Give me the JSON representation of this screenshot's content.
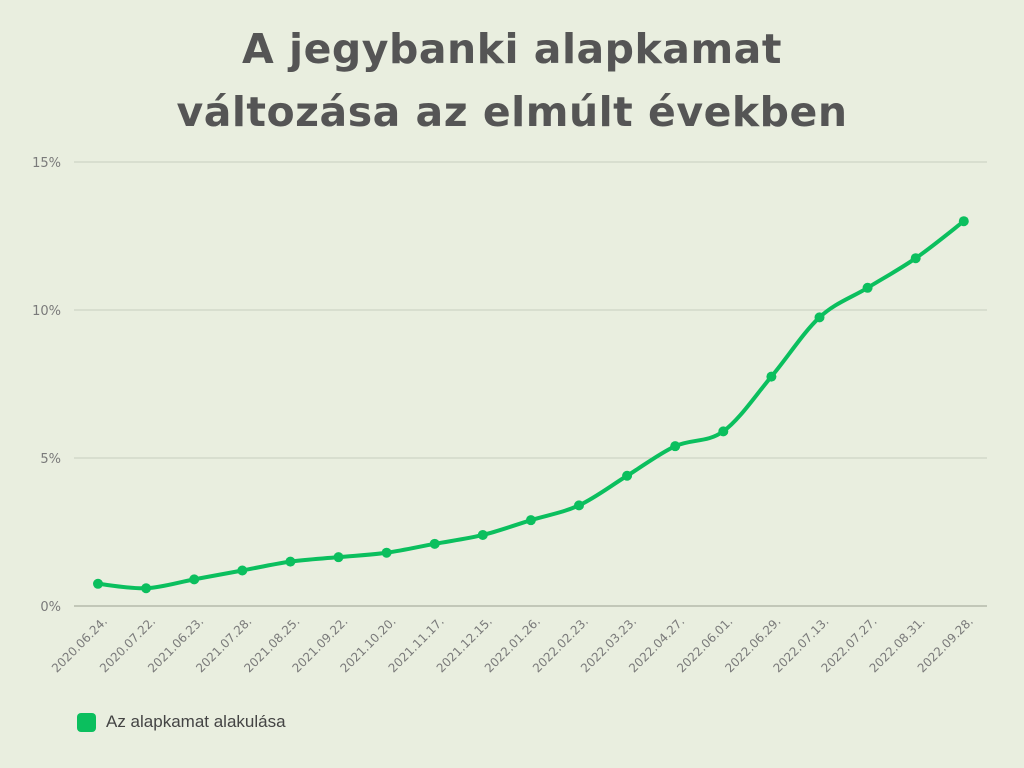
{
  "title": {
    "line1": "A jegybanki alapkamat",
    "line2": "változása az elmúlt években"
  },
  "colors": {
    "background": "#e9eedf",
    "line": "#0bbf5e",
    "grid": "#c8cdbf",
    "text": "#555555"
  },
  "chart_data": {
    "type": "line",
    "categories": [
      "2020.06.24.",
      "2020.07.22.",
      "2021.06.23.",
      "2021.07.28.",
      "2021.08.25.",
      "2021.09.22.",
      "2021.10.20.",
      "2021.11.17.",
      "2021.12.15.",
      "2022.01.26.",
      "2022.02.23.",
      "2022.03.23.",
      "2022.04.27.",
      "2022.06.01.",
      "2022.06.29.",
      "2022.07.13.",
      "2022.07.27.",
      "2022.08.31.",
      "2022.09.28."
    ],
    "series": [
      {
        "name": "Az alapkamat alakulása",
        "values": [
          0.75,
          0.6,
          0.9,
          1.2,
          1.5,
          1.65,
          1.8,
          2.1,
          2.4,
          2.9,
          3.4,
          4.4,
          5.4,
          5.9,
          7.75,
          9.75,
          10.75,
          11.75,
          13.0
        ]
      }
    ],
    "ylim": [
      0,
      15
    ],
    "yticks": [
      0,
      5,
      10,
      15
    ],
    "ytick_labels": [
      "0%",
      "5%",
      "10%",
      "15%"
    ],
    "grid": true,
    "legend": "bottom-left",
    "smooth": true
  }
}
